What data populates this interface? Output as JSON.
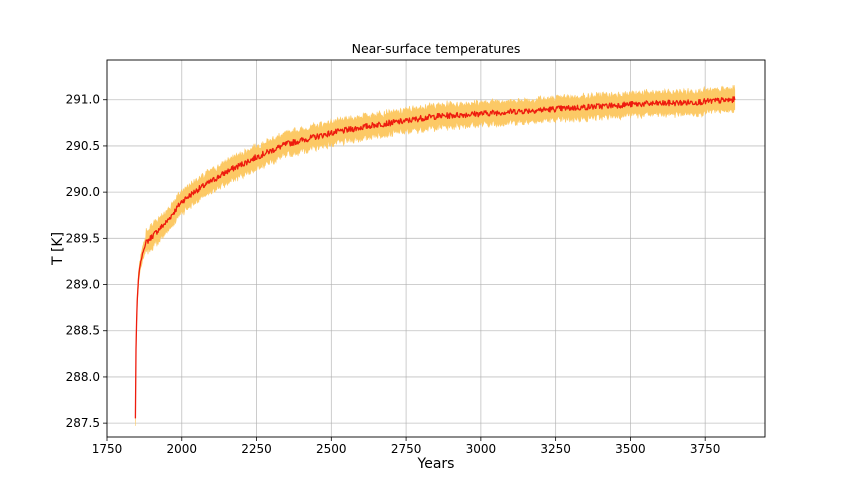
{
  "chart_data": {
    "type": "line",
    "title": "Near-surface temperatures",
    "xlabel": "Years",
    "ylabel": "T [K]",
    "xlim": [
      1750,
      3950
    ],
    "ylim": [
      287.35,
      291.43
    ],
    "xticks": [
      1750,
      2000,
      2250,
      2500,
      2750,
      3000,
      3250,
      3500,
      3750
    ],
    "yticks": [
      287.5,
      288.0,
      288.5,
      289.0,
      289.5,
      290.0,
      290.5,
      291.0
    ],
    "ytick_labels": [
      "287.5",
      "288.0",
      "288.5",
      "289.0",
      "289.5",
      "290.0",
      "290.5",
      "291.0"
    ],
    "grid": true,
    "series": [
      {
        "kind": "line",
        "color": "#ee1c0e",
        "x": [
          1845,
          1847,
          1850,
          1855,
          1860,
          1870,
          1880,
          1900,
          1950,
          2000,
          2050,
          2100,
          2150,
          2200,
          2250,
          2300,
          2350,
          2400,
          2450,
          2500,
          2550,
          2600,
          2650,
          2700,
          2750,
          2800,
          2850,
          2900,
          2950,
          3000,
          3100,
          3200,
          3300,
          3400,
          3500,
          3600,
          3700,
          3800,
          3850
        ],
        "y": [
          287.55,
          288.3,
          288.75,
          289.05,
          289.2,
          289.35,
          289.45,
          289.52,
          289.68,
          289.9,
          290.02,
          290.12,
          290.22,
          290.3,
          290.38,
          290.45,
          290.52,
          290.56,
          290.6,
          290.64,
          290.67,
          290.7,
          290.73,
          290.75,
          290.77,
          290.8,
          290.82,
          290.83,
          290.84,
          290.85,
          290.87,
          290.89,
          290.91,
          290.93,
          290.95,
          290.96,
          290.97,
          290.99,
          291.0
        ]
      },
      {
        "kind": "band",
        "color": "#fcc965",
        "half_width": 0.1,
        "noise": 0.04
      }
    ]
  }
}
